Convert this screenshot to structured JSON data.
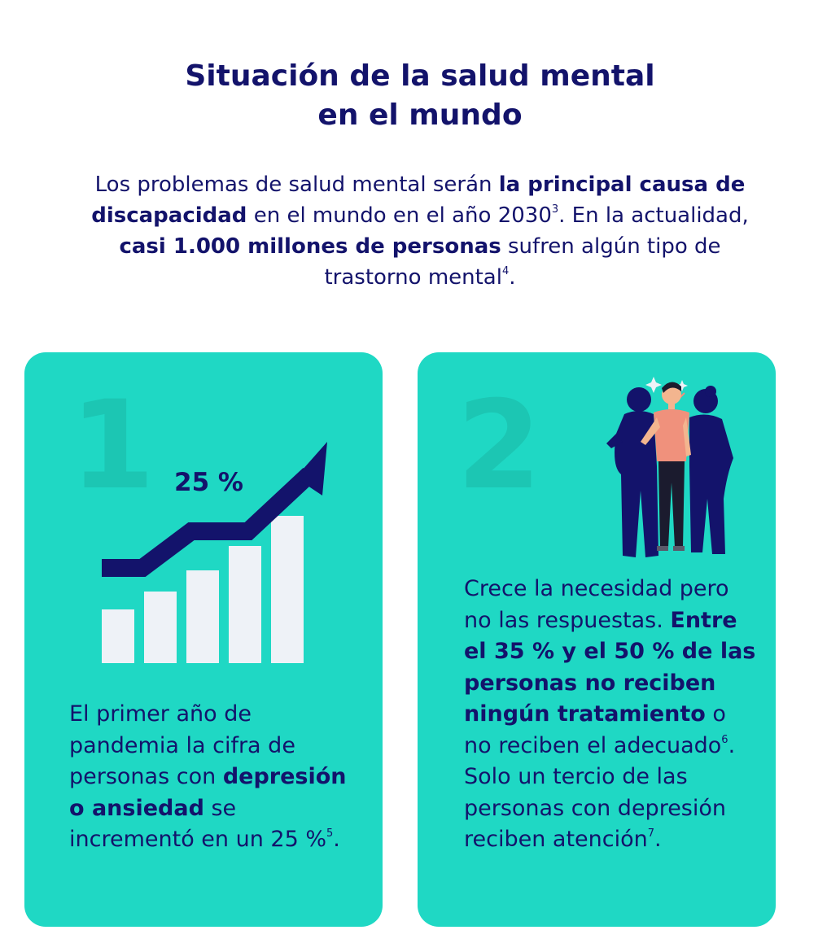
{
  "header": {
    "title_line1": "Situación de la salud mental",
    "title_line2": "en el mundo"
  },
  "intro": {
    "t1": "Los problemas de salud mental serán ",
    "b1": "la principal causa de discapacidad",
    "t2": " en el mundo en el año 2030",
    "sup1": "3",
    "t3": ". En la actualidad, ",
    "b2": "casi 1.000 millones de personas",
    "t4": " sufren algún tipo de trastorno mental",
    "sup2": "4",
    "t5": "."
  },
  "card1": {
    "number": "1",
    "chart_label": "25 %",
    "text1": "El primer año de pandemia la cifra de personas con ",
    "bold": "depresión o ansiedad",
    "text2": " se incrementó en un 25 %",
    "sup": "5",
    "text3": ".",
    "icons": [
      "bar-chart-icon",
      "rising-arrow-icon"
    ]
  },
  "card2": {
    "number": "2",
    "text1": "Crece la necesidad pero no las respuestas. ",
    "bold": "Entre el 35 % y el 50 % de las personas no reciben ningún tratamiento",
    "text2": " o no reciben el adecuado",
    "sup1": "6",
    "text3": ". Solo un tercio de las personas con depresión reciben atención",
    "sup2": "7",
    "text4": ".",
    "icons": [
      "people-group-icon"
    ]
  },
  "colors": {
    "navy": "#13136b",
    "teal": "#1fd8c4",
    "teal_dark": "#1cc6b3",
    "bar": "#eef2f7",
    "coral": "#f0917c"
  }
}
